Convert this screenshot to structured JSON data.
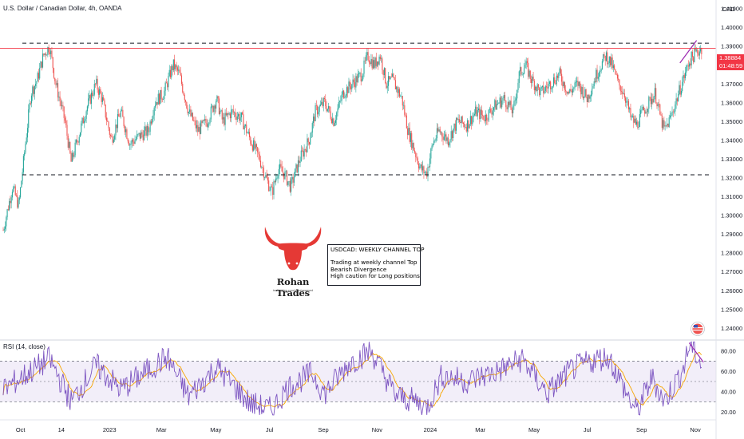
{
  "header": {
    "symbol_title": "U.S. Dollar / Canadian Dollar, 4h, OANDA",
    "currency": "CAD"
  },
  "price_tag": {
    "price": "1.38884",
    "countdown": "01:48:59"
  },
  "annotation": {
    "title": "USDCAD: WEEKLY CHANNEL TOP",
    "line1": "Trading at weekly channel Top",
    "line2": "Bearish Divergence",
    "line3": "High caution for Long positions"
  },
  "logo": {
    "name": "Rohan Trades",
    "url": "tradingview.com/u/i/rohansaved"
  },
  "rsi": {
    "label": "RSI (14, close)"
  },
  "colors": {
    "up": "#26a69a",
    "down": "#ef5350",
    "rsi_line": "#7e57c2",
    "rsi_ma": "#f7a600",
    "rsi_band": "#7e57c2",
    "trendline": "#9c27b0",
    "price_line": "#f23645",
    "logo_red": "#e53935"
  },
  "chart_data": [
    {
      "type": "candlestick",
      "title": "U.S. Dollar / Canadian Dollar, 4h, OANDA",
      "y_unit": "CAD",
      "y_ticks": [
        1.41,
        1.4,
        1.39,
        1.38,
        1.37,
        1.36,
        1.35,
        1.34,
        1.33,
        1.32,
        1.31,
        1.3,
        1.29,
        1.28,
        1.27,
        1.26,
        1.25,
        1.24
      ],
      "y_tick_labels": [
        "1.41000",
        "1.40000",
        "1.39000",
        "1.38000",
        "1.37000",
        "1.36000",
        "1.35000",
        "1.34000",
        "1.33000",
        "1.32000",
        "1.31000",
        "1.30000",
        "1.29000",
        "1.28000",
        "1.27000",
        "1.26000",
        "1.25000",
        "1.24000"
      ],
      "ylim": [
        1.234,
        1.4145
      ],
      "x_ticks": [
        "Oct",
        "14",
        "2023",
        "Mar",
        "May",
        "Jul",
        "Sep",
        "Nov",
        "2024",
        "Mar",
        "May",
        "Jul",
        "Sep",
        "Nov"
      ],
      "x_tick_weeks": [
        2.8,
        9.4,
        17.2,
        25.6,
        34.4,
        43.1,
        51.8,
        60.5,
        69.1,
        77.2,
        85.9,
        94.5,
        103.3,
        112.0
      ],
      "close_path": [
        [
          0,
          1.292
        ],
        [
          1.5,
          1.315
        ],
        [
          2.5,
          1.305
        ],
        [
          3.5,
          1.335
        ],
        [
          4.5,
          1.365
        ],
        [
          5.5,
          1.372
        ],
        [
          6.5,
          1.385
        ],
        [
          7.5,
          1.39
        ],
        [
          8.5,
          1.37
        ],
        [
          10,
          1.35
        ],
        [
          11,
          1.328
        ],
        [
          12,
          1.34
        ],
        [
          13.5,
          1.357
        ],
        [
          15,
          1.37
        ],
        [
          16,
          1.362
        ],
        [
          17.5,
          1.34
        ],
        [
          19,
          1.355
        ],
        [
          20.5,
          1.338
        ],
        [
          22,
          1.342
        ],
        [
          23.5,
          1.345
        ],
        [
          24.5,
          1.36
        ],
        [
          26,
          1.365
        ],
        [
          27.5,
          1.38
        ],
        [
          28.5,
          1.375
        ],
        [
          30,
          1.355
        ],
        [
          31.5,
          1.345
        ],
        [
          33,
          1.35
        ],
        [
          34.5,
          1.362
        ],
        [
          35.5,
          1.35
        ],
        [
          37,
          1.355
        ],
        [
          38.5,
          1.352
        ],
        [
          40,
          1.34
        ],
        [
          41.5,
          1.33
        ],
        [
          42.5,
          1.32
        ],
        [
          43.5,
          1.312
        ],
        [
          44.5,
          1.325
        ],
        [
          45.5,
          1.322
        ],
        [
          46.5,
          1.315
        ],
        [
          48,
          1.33
        ],
        [
          49.5,
          1.34
        ],
        [
          50.5,
          1.355
        ],
        [
          52,
          1.36
        ],
        [
          53.5,
          1.35
        ],
        [
          55,
          1.365
        ],
        [
          56.5,
          1.37
        ],
        [
          58,
          1.375
        ],
        [
          59,
          1.385
        ],
        [
          60,
          1.38
        ],
        [
          61,
          1.385
        ],
        [
          62,
          1.37
        ],
        [
          63,
          1.372
        ],
        [
          64.5,
          1.362
        ],
        [
          65.5,
          1.345
        ],
        [
          66.5,
          1.335
        ],
        [
          67.5,
          1.325
        ],
        [
          68.5,
          1.322
        ],
        [
          69.5,
          1.338
        ],
        [
          70.5,
          1.345
        ],
        [
          72,
          1.34
        ],
        [
          73.5,
          1.35
        ],
        [
          75,
          1.348
        ],
        [
          76.5,
          1.355
        ],
        [
          78,
          1.352
        ],
        [
          79.5,
          1.358
        ],
        [
          81,
          1.362
        ],
        [
          82.5,
          1.355
        ],
        [
          83.5,
          1.375
        ],
        [
          84.5,
          1.38
        ],
        [
          85.5,
          1.372
        ],
        [
          87,
          1.365
        ],
        [
          88.5,
          1.37
        ],
        [
          90,
          1.375
        ],
        [
          91.5,
          1.365
        ],
        [
          93,
          1.37
        ],
        [
          94.5,
          1.362
        ],
        [
          96,
          1.375
        ],
        [
          97.5,
          1.385
        ],
        [
          98.5,
          1.38
        ],
        [
          99.5,
          1.37
        ],
        [
          100.5,
          1.365
        ],
        [
          101.5,
          1.352
        ],
        [
          102.5,
          1.348
        ],
        [
          103.5,
          1.355
        ],
        [
          104.5,
          1.36
        ],
        [
          105.5,
          1.365
        ],
        [
          106.5,
          1.35
        ],
        [
          107,
          1.345
        ],
        [
          108,
          1.352
        ],
        [
          109,
          1.362
        ],
        [
          110,
          1.372
        ],
        [
          111,
          1.382
        ],
        [
          112,
          1.386
        ],
        [
          113,
          1.38884
        ]
      ],
      "resistance_level": 1.3915,
      "support_level": 1.3215,
      "current_price": 1.38884,
      "trendline": [
        [
          109.5,
          1.381
        ],
        [
          112.2,
          1.393
        ]
      ]
    },
    {
      "type": "line",
      "title": "RSI (14, close)",
      "y_ticks": [
        80,
        60,
        40,
        20
      ],
      "y_tick_labels": [
        "80.00",
        "60.00",
        "40.00",
        "20.00"
      ],
      "ylim": [
        13,
        90
      ],
      "bands": [
        30,
        70
      ],
      "midline": 50,
      "series": [
        {
          "name": "RSI",
          "values_path": [
            [
              0,
              42
            ],
            [
              7.5,
              72
            ],
            [
              11,
              30
            ],
            [
              15,
              66
            ],
            [
              19,
              42
            ],
            [
              26.5,
              74
            ],
            [
              30,
              35
            ],
            [
              34.5,
              64
            ],
            [
              40,
              28
            ],
            [
              43.5,
              22
            ],
            [
              46,
              44
            ],
            [
              50,
              58
            ],
            [
              52,
              38
            ],
            [
              56,
              68
            ],
            [
              59.5,
              80
            ],
            [
              63.5,
              36
            ],
            [
              67,
              30
            ],
            [
              68.5,
              24
            ],
            [
              71,
              56
            ],
            [
              75,
              50
            ],
            [
              80,
              60
            ],
            [
              84,
              72
            ],
            [
              88,
              38
            ],
            [
              92,
              62
            ],
            [
              96,
              72
            ],
            [
              98,
              74
            ],
            [
              101.5,
              30
            ],
            [
              102.5,
              20
            ],
            [
              105,
              54
            ],
            [
              107,
              30
            ],
            [
              110,
              62
            ],
            [
              111.2,
              88
            ],
            [
              112,
              78
            ],
            [
              113,
              66
            ]
          ]
        }
      ],
      "divergence_line": [
        [
          111.0,
          88
        ],
        [
          113.3,
          69
        ]
      ]
    }
  ]
}
